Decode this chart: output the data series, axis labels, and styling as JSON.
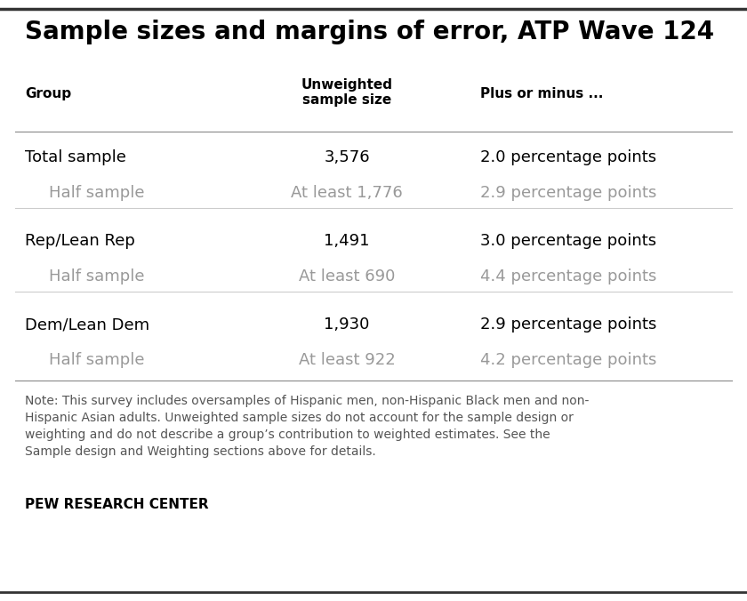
{
  "title": "Sample sizes and margins of error, ATP Wave 124",
  "background_color": "#ffffff",
  "title_fontsize": 20,
  "col_headers": [
    "Group",
    "Unweighted\nsample size",
    "Plus or minus ..."
  ],
  "col_header_fontsize": 11,
  "rows": [
    {
      "group": "Total sample",
      "sample": "3,576",
      "moe": "2.0 percentage points",
      "is_sub": false,
      "color": "#000000"
    },
    {
      "group": "Half sample",
      "sample": "At least 1,776",
      "moe": "2.9 percentage points",
      "is_sub": true,
      "color": "#999999"
    },
    {
      "group": "Rep/Lean Rep",
      "sample": "1,491",
      "moe": "3.0 percentage points",
      "is_sub": false,
      "color": "#000000"
    },
    {
      "group": "Half sample",
      "sample": "At least 690",
      "moe": "4.4 percentage points",
      "is_sub": true,
      "color": "#999999"
    },
    {
      "group": "Dem/Lean Dem",
      "sample": "1,930",
      "moe": "2.9 percentage points",
      "is_sub": false,
      "color": "#000000"
    },
    {
      "group": "Half sample",
      "sample": "At least 922",
      "moe": "4.2 percentage points",
      "is_sub": true,
      "color": "#999999"
    }
  ],
  "note_text": "Note: This survey includes oversamples of Hispanic men, non-Hispanic Black men and non-Hispanic Asian adults. Unweighted sample sizes do not account for the sample design or weighting and do not describe a group’s contribution to weighted estimates. See the Sample design and Weighting sections above for details.",
  "footer_text": "PEW RESEARCH CENTER",
  "note_fontsize": 10,
  "footer_fontsize": 11,
  "data_fontsize": 13,
  "line_color_top": "#333333",
  "line_color_header": "#888888",
  "line_color_divider": "#cccccc",
  "line_color_bottom": "#333333"
}
